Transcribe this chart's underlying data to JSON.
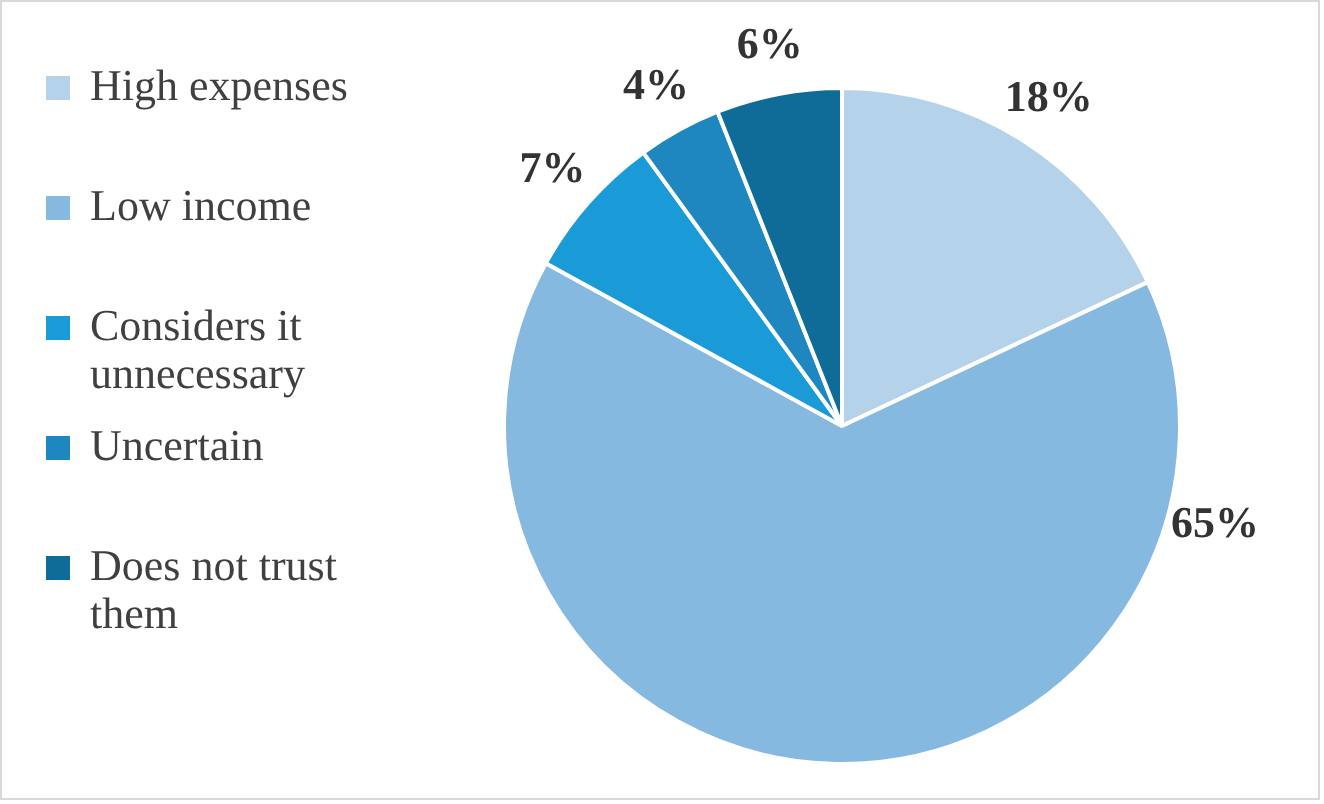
{
  "chart_data": {
    "type": "pie",
    "categories": [
      "High expenses",
      "Low income",
      "Considers it unnecessary",
      "Uncertain",
      "Does not trust them"
    ],
    "values": [
      18,
      65,
      7,
      4,
      6
    ],
    "colors": [
      "#b4d3ea",
      "#85b9e0",
      "#1a9ad6",
      "#1e87c0",
      "#0f6c99"
    ],
    "value_labels": [
      "18%",
      "65%",
      "7%",
      "4%",
      "6%"
    ],
    "legend": "left"
  }
}
